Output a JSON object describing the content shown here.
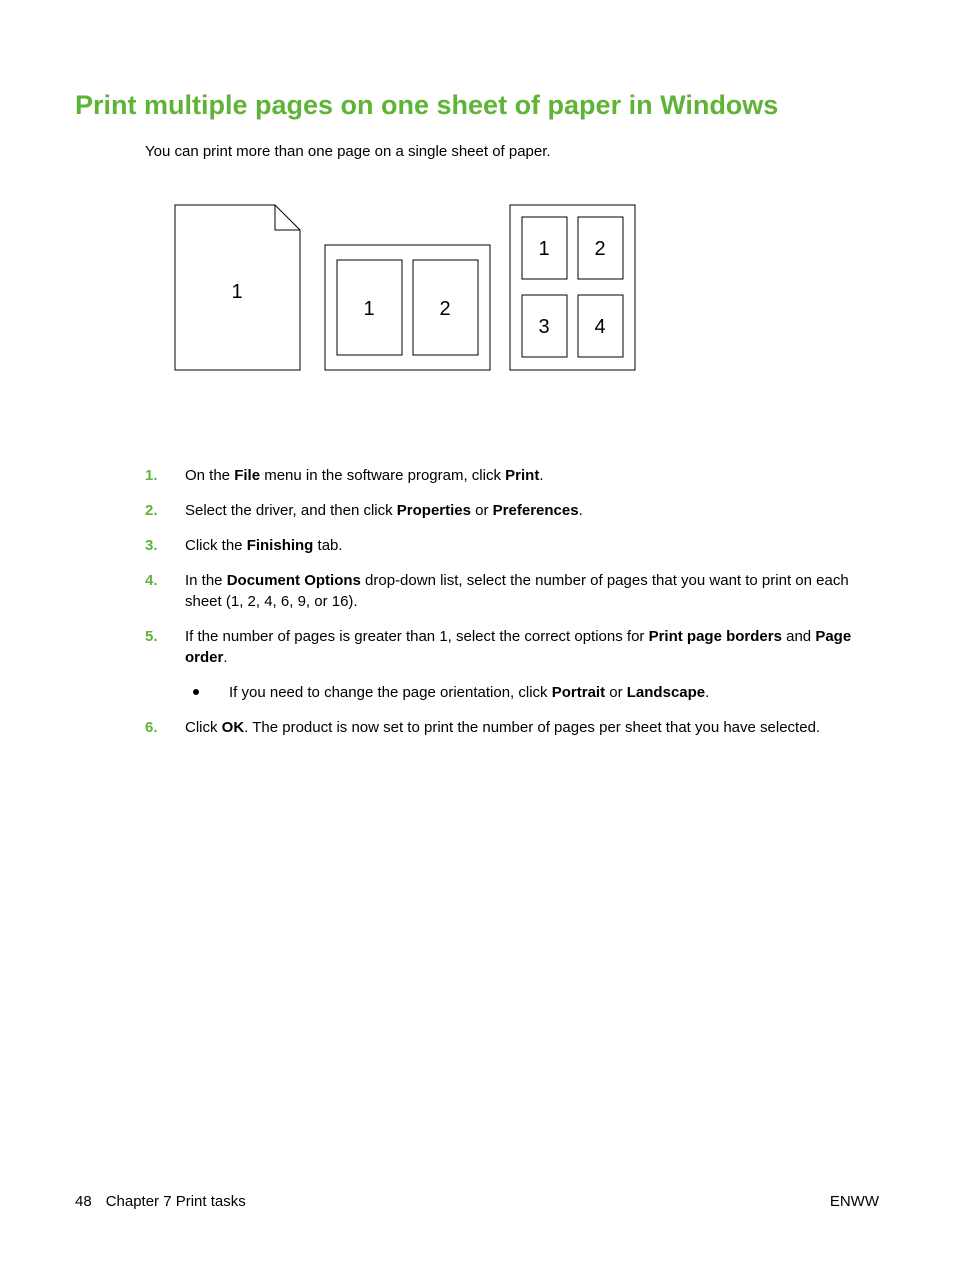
{
  "title": {
    "text": "Print multiple pages on one sheet of paper in Windows",
    "color": "#5fb336"
  },
  "intro": "You can print more than one page on a single sheet of paper.",
  "diagram": {
    "stroke": "#000000",
    "stroke_width": 1,
    "label_font_size": 20,
    "panels": {
      "single": {
        "label": "1"
      },
      "double": {
        "labels": [
          "1",
          "2"
        ]
      },
      "quad": {
        "labels": [
          "1",
          "2",
          "3",
          "4"
        ]
      }
    }
  },
  "steps": {
    "number_color": "#5fb336",
    "items": [
      {
        "n": "1.",
        "segments": [
          {
            "t": "On the "
          },
          {
            "t": "File",
            "b": true
          },
          {
            "t": " menu in the software program, click "
          },
          {
            "t": "Print",
            "b": true
          },
          {
            "t": "."
          }
        ]
      },
      {
        "n": "2.",
        "segments": [
          {
            "t": "Select the driver, and then click "
          },
          {
            "t": "Properties",
            "b": true
          },
          {
            "t": " or "
          },
          {
            "t": "Preferences",
            "b": true
          },
          {
            "t": "."
          }
        ]
      },
      {
        "n": "3.",
        "segments": [
          {
            "t": "Click the "
          },
          {
            "t": "Finishing",
            "b": true
          },
          {
            "t": " tab."
          }
        ]
      },
      {
        "n": "4.",
        "segments": [
          {
            "t": "In the "
          },
          {
            "t": "Document Options",
            "b": true
          },
          {
            "t": " drop-down list, select the number of pages that you want to print on each sheet (1, 2, 4, 6, 9, or 16)."
          }
        ]
      },
      {
        "n": "5.",
        "segments": [
          {
            "t": "If the number of pages is greater than 1, select the correct options for "
          },
          {
            "t": "Print page borders",
            "b": true
          },
          {
            "t": " and "
          },
          {
            "t": "Page order",
            "b": true
          },
          {
            "t": "."
          }
        ],
        "sub": [
          {
            "segments": [
              {
                "t": "If you need to change the page orientation, click "
              },
              {
                "t": "Portrait",
                "b": true
              },
              {
                "t": " or "
              },
              {
                "t": "Landscape",
                "b": true
              },
              {
                "t": "."
              }
            ]
          }
        ]
      },
      {
        "n": "6.",
        "segments": [
          {
            "t": "Click "
          },
          {
            "t": "OK",
            "b": true
          },
          {
            "t": ". The product is now set to print the number of pages per sheet that you have selected."
          }
        ]
      }
    ]
  },
  "footer": {
    "page_number": "48",
    "chapter": "Chapter 7   Print tasks",
    "right": "ENWW"
  }
}
